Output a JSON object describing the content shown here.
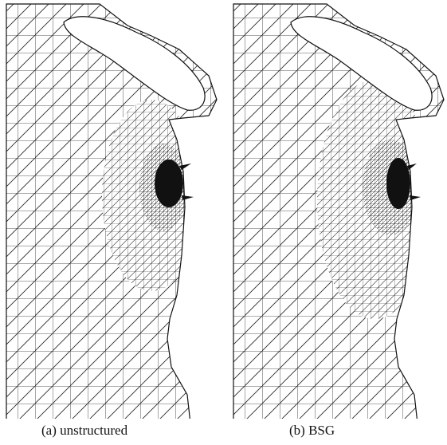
{
  "figure": {
    "panels": [
      {
        "caption": "(a) unstructured"
      },
      {
        "caption": "(b) BSG"
      }
    ]
  }
}
